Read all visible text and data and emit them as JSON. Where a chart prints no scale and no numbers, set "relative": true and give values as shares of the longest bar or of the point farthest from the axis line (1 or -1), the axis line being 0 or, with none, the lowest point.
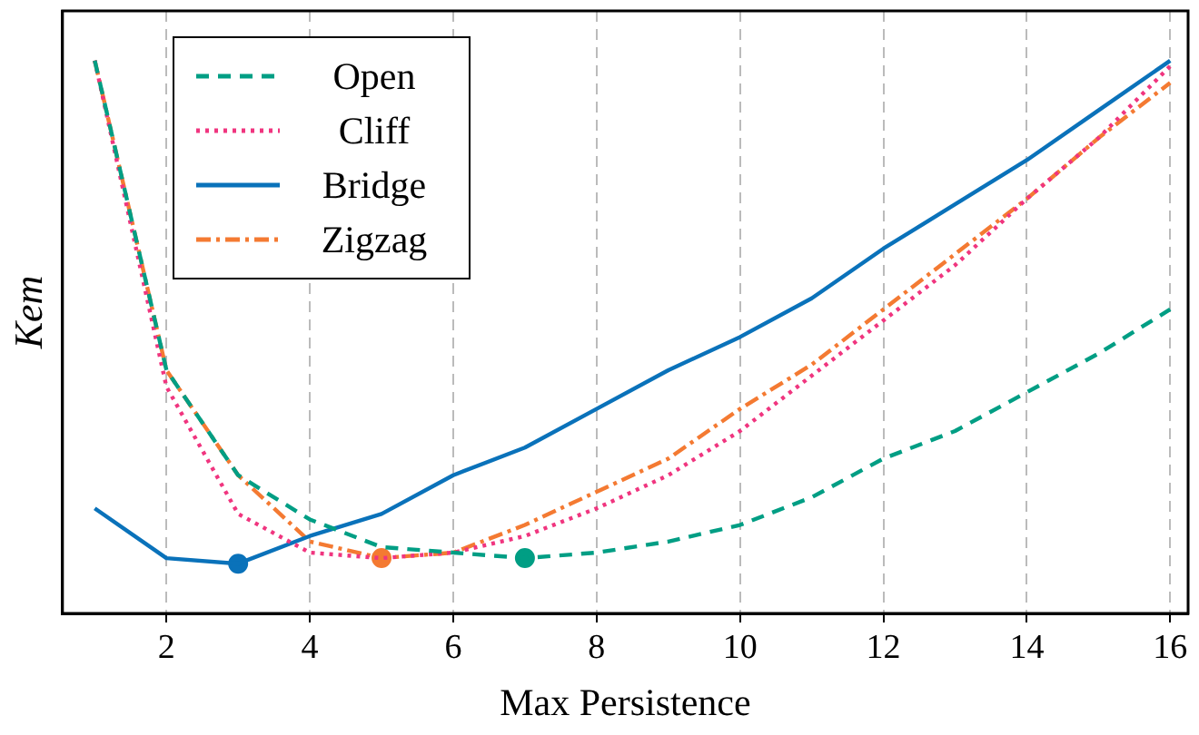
{
  "chart_data": {
    "type": "line",
    "xlabel": "Max Persistence",
    "ylabel": "Kem",
    "relative": true,
    "x": [
      1,
      2,
      3,
      4,
      5,
      6,
      7,
      8,
      9,
      10,
      11,
      12,
      13,
      14,
      15,
      16
    ],
    "xlim": [
      0.55,
      16.25
    ],
    "xticks": [
      2,
      4,
      6,
      8,
      10,
      12,
      14,
      16
    ],
    "grid": "x",
    "legend": "top left",
    "marker": "none",
    "series": [
      {
        "name": "Open",
        "color": "#009e84",
        "line_style": "dashed",
        "values": [
          1.0,
          0.44,
          0.25,
          0.17,
          0.12,
          0.11,
          0.1,
          0.11,
          0.13,
          0.16,
          0.21,
          0.28,
          0.33,
          0.4,
          0.47,
          0.55
        ]
      },
      {
        "name": "Cliff",
        "color": "#f0357f",
        "line_style": "dotted",
        "values": [
          1.0,
          0.41,
          0.18,
          0.11,
          0.1,
          0.11,
          0.14,
          0.19,
          0.25,
          0.33,
          0.43,
          0.53,
          0.63,
          0.75,
          0.86,
          0.99
        ]
      },
      {
        "name": "Bridge",
        "color": "#0a72ba",
        "line_style": "solid",
        "values": [
          0.19,
          0.1,
          0.09,
          0.14,
          0.18,
          0.25,
          0.3,
          0.37,
          0.44,
          0.5,
          0.57,
          0.66,
          0.74,
          0.82,
          0.91,
          1.0
        ]
      },
      {
        "name": "Zigzag",
        "color": "#f47a32",
        "line_style": "dashdot",
        "values": [
          1.0,
          0.44,
          0.25,
          0.13,
          0.1,
          0.11,
          0.16,
          0.22,
          0.28,
          0.37,
          0.45,
          0.55,
          0.65,
          0.75,
          0.86,
          0.96
        ]
      },
      {
        "type": "scatter",
        "color": "#0a72ba",
        "marker": "circle",
        "x": [
          3
        ],
        "values": [
          0.09
        ]
      },
      {
        "type": "scatter",
        "color": "#f47a32",
        "marker": "circle",
        "x": [
          5
        ],
        "values": [
          0.1
        ]
      },
      {
        "type": "scatter",
        "color": "#009e84",
        "marker": "circle",
        "x": [
          7
        ],
        "values": [
          0.1
        ]
      }
    ]
  }
}
